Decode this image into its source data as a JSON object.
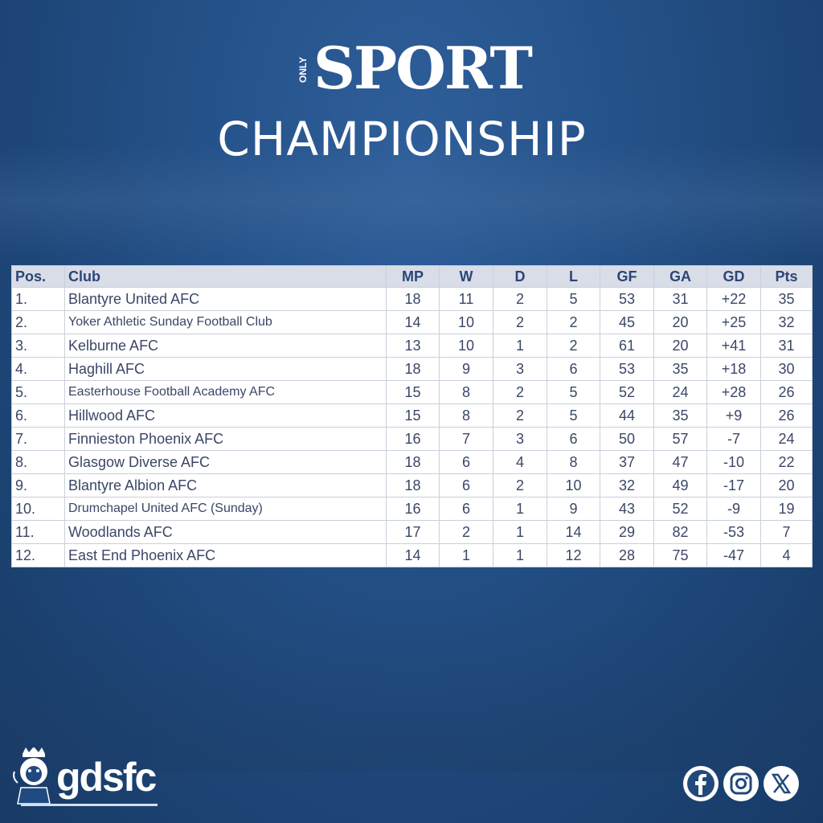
{
  "logo": {
    "brand": "ONLY SPORT",
    "small": "ONLY",
    "main": "SPORT"
  },
  "title": "CHAMPIONSHIP",
  "table": {
    "headers": [
      "Pos.",
      "Club",
      "MP",
      "W",
      "D",
      "L",
      "GF",
      "GA",
      "GD",
      "Pts"
    ],
    "rows": [
      [
        "1.",
        "Blantyre United AFC",
        "18",
        "11",
        "2",
        "5",
        "53",
        "31",
        "+22",
        "35"
      ],
      [
        "2.",
        "Yoker Athletic Sunday Football Club",
        "14",
        "10",
        "2",
        "2",
        "45",
        "20",
        "+25",
        "32"
      ],
      [
        "3.",
        "Kelburne AFC",
        "13",
        "10",
        "1",
        "2",
        "61",
        "20",
        "+41",
        "31"
      ],
      [
        "4.",
        "Haghill AFC",
        "18",
        "9",
        "3",
        "6",
        "53",
        "35",
        "+18",
        "30"
      ],
      [
        "5.",
        "Easterhouse Football Academy AFC",
        "15",
        "8",
        "2",
        "5",
        "52",
        "24",
        "+28",
        "26"
      ],
      [
        "6.",
        "Hillwood AFC",
        "15",
        "8",
        "2",
        "5",
        "44",
        "35",
        "+9",
        "26"
      ],
      [
        "7.",
        "Finnieston Phoenix AFC",
        "16",
        "7",
        "3",
        "6",
        "50",
        "57",
        "-7",
        "24"
      ],
      [
        "8.",
        "Glasgow Diverse AFC",
        "18",
        "6",
        "4",
        "8",
        "37",
        "47",
        "-10",
        "22"
      ],
      [
        "9.",
        "Blantyre Albion AFC",
        "18",
        "6",
        "2",
        "10",
        "32",
        "49",
        "-17",
        "20"
      ],
      [
        "10.",
        "Drumchapel United AFC (Sunday)",
        "16",
        "6",
        "1",
        "9",
        "43",
        "52",
        "-9",
        "19"
      ],
      [
        "11.",
        "Woodlands AFC",
        "17",
        "2",
        "1",
        "14",
        "29",
        "82",
        "-53",
        "7"
      ],
      [
        "12.",
        "East End Phoenix AFC",
        "14",
        "1",
        "1",
        "12",
        "28",
        "75",
        "-47",
        "4"
      ]
    ]
  },
  "footer": {
    "club_logo": "gdsfc",
    "social": [
      "facebook-icon",
      "instagram-icon",
      "x-icon"
    ]
  },
  "colors": {
    "background": "#25528a",
    "header_bg": "#d9dde8",
    "header_text": "#2b4676",
    "cell_text": "#3a4767"
  }
}
